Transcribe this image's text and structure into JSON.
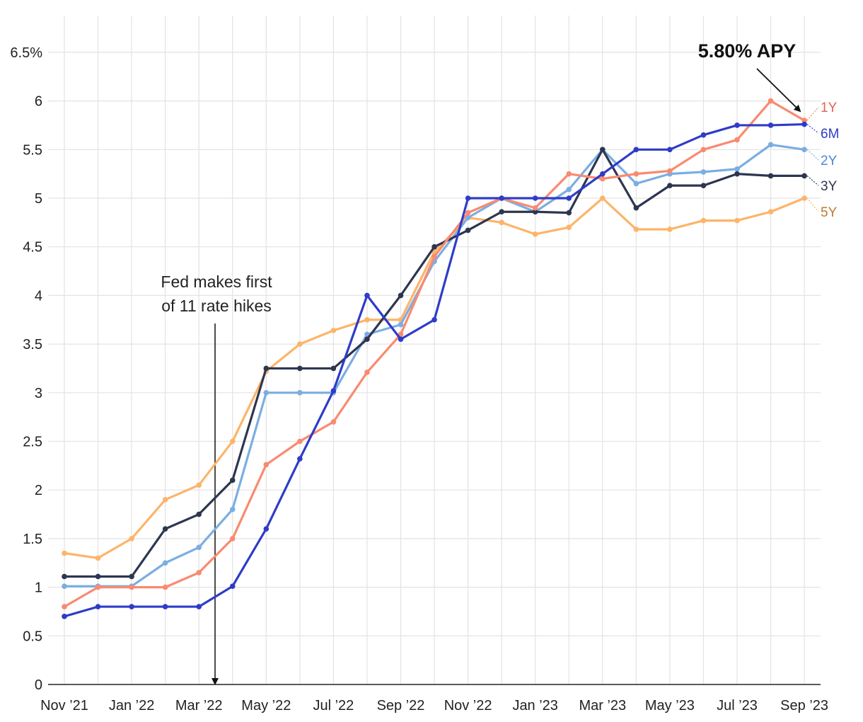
{
  "chart_data": {
    "type": "line",
    "x": [
      "Nov '21",
      "Dec '21",
      "Jan '22",
      "Feb '22",
      "Mar '22",
      "Apr '22",
      "May '22",
      "Jun '22",
      "Jul '22",
      "Aug '22",
      "Sep '22",
      "Oct '22",
      "Nov '22",
      "Dec '22",
      "Jan '23",
      "Feb '23",
      "Mar '23",
      "Apr '23",
      "May '23",
      "Jun '23",
      "Jul '23",
      "Aug '23",
      "Sep '23"
    ],
    "x_tick_labels": [
      "Nov ’21",
      "Jan ’22",
      "Mar ’22",
      "May ’22",
      "Jul ’22",
      "Sep ’22",
      "Nov ’22",
      "Jan ’23",
      "Mar ’23",
      "May ’23",
      "Jul ’23",
      "Sep ’23"
    ],
    "y_tick_labels": [
      "0",
      "0.5",
      "1",
      "1.5",
      "2",
      "2.5",
      "3",
      "3.5",
      "4",
      "4.5",
      "5",
      "5.5",
      "6",
      "6.5%"
    ],
    "ylim": [
      0,
      6.5
    ],
    "grid": true,
    "series": [
      {
        "name": "5Y",
        "color": "#FDB46A",
        "label_color": "#C07A30",
        "values": [
          1.35,
          1.3,
          1.5,
          1.9,
          2.05,
          2.5,
          3.22,
          3.5,
          3.64,
          3.75,
          3.75,
          4.45,
          4.8,
          4.75,
          4.63,
          4.7,
          5.0,
          4.68,
          4.68,
          4.77,
          4.77,
          4.86,
          5.0
        ]
      },
      {
        "name": "2Y",
        "color": "#7AAEE3",
        "label_color": "#4A8AD0",
        "values": [
          1.01,
          1.01,
          1.01,
          1.25,
          1.41,
          1.8,
          3.0,
          3.0,
          3.0,
          3.6,
          3.7,
          4.35,
          4.8,
          5.0,
          4.86,
          5.09,
          5.5,
          5.15,
          5.25,
          5.27,
          5.3,
          5.55,
          5.5
        ]
      },
      {
        "name": "3Y",
        "color": "#2D3650",
        "label_color": "#2D3650",
        "values": [
          1.11,
          1.11,
          1.11,
          1.6,
          1.75,
          2.1,
          3.25,
          3.25,
          3.25,
          3.55,
          4.0,
          4.5,
          4.67,
          4.86,
          4.86,
          4.85,
          5.5,
          4.9,
          5.13,
          5.13,
          5.25,
          5.23,
          5.23
        ]
      },
      {
        "name": "1Y",
        "color": "#F98A70",
        "label_color": "#E0684E",
        "values": [
          0.8,
          1.0,
          1.0,
          1.0,
          1.15,
          1.5,
          2.26,
          2.5,
          2.7,
          3.21,
          3.6,
          4.4,
          4.85,
          5.0,
          4.9,
          5.25,
          5.2,
          5.25,
          5.28,
          5.5,
          5.6,
          6.0,
          5.8
        ]
      },
      {
        "name": "6M",
        "color": "#2E3CC8",
        "label_color": "#2E3CC8",
        "values": [
          0.7,
          0.8,
          0.8,
          0.8,
          0.8,
          1.01,
          1.6,
          2.32,
          3.02,
          4.0,
          3.55,
          3.75,
          5.0,
          5.0,
          5.0,
          5.0,
          5.25,
          5.5,
          5.5,
          5.65,
          5.75,
          5.75,
          5.76
        ]
      }
    ],
    "annotations": [
      {
        "text_line1": "Fed makes first",
        "text_line2": "of 11 rate hikes"
      },
      {
        "text": "5.80% APY"
      }
    ]
  }
}
